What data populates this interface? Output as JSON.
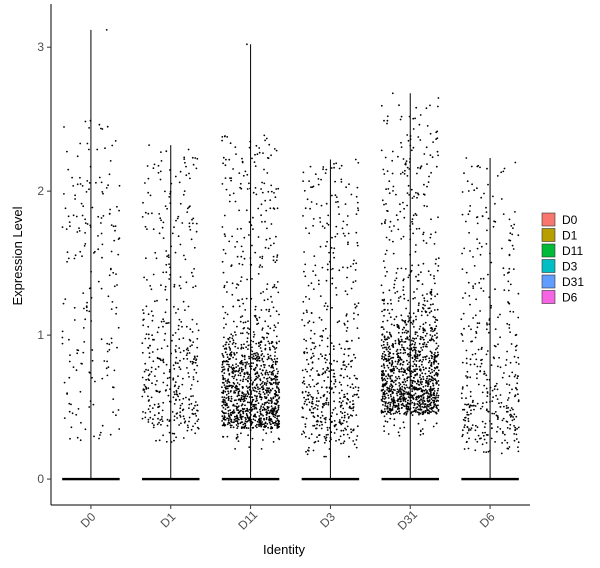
{
  "chart_data": {
    "type": "scatter",
    "subtype": "violin-jitter",
    "title": "",
    "xlabel": "Identity",
    "ylabel": "Expression Level",
    "ylim": [
      -0.18,
      3.3
    ],
    "yticks": [
      0,
      1,
      2,
      3
    ],
    "grid": false,
    "legend_position": "right",
    "categories": [
      "D0",
      "D1",
      "D11",
      "D3",
      "D31",
      "D6"
    ],
    "series": [
      {
        "name": "D0",
        "color": "#F8766D",
        "max": 3.12,
        "nonzero_count": 200,
        "nonzero_min": 0.25,
        "nonzero_typical_max": 2.5,
        "density": "sparse"
      },
      {
        "name": "D1",
        "color": "#B79F00",
        "max": 2.32,
        "nonzero_count": 420,
        "nonzero_min": 0.25,
        "nonzero_typical_max": 2.3,
        "density": "medium"
      },
      {
        "name": "D11",
        "color": "#00BA38",
        "max": 3.02,
        "nonzero_count": 1200,
        "nonzero_min": 0.2,
        "nonzero_typical_max": 2.4,
        "density": "dense-low"
      },
      {
        "name": "D3",
        "color": "#00BFC4",
        "max": 2.22,
        "nonzero_count": 520,
        "nonzero_min": 0.15,
        "nonzero_typical_max": 2.2,
        "density": "medium"
      },
      {
        "name": "D31",
        "color": "#619CFF",
        "max": 2.68,
        "nonzero_count": 1300,
        "nonzero_min": 0.3,
        "nonzero_typical_max": 2.65,
        "density": "dense-low"
      },
      {
        "name": "D6",
        "color": "#F564E3",
        "max": 2.23,
        "nonzero_count": 400,
        "nonzero_min": 0.15,
        "nonzero_typical_max": 2.2,
        "density": "medium"
      }
    ]
  }
}
